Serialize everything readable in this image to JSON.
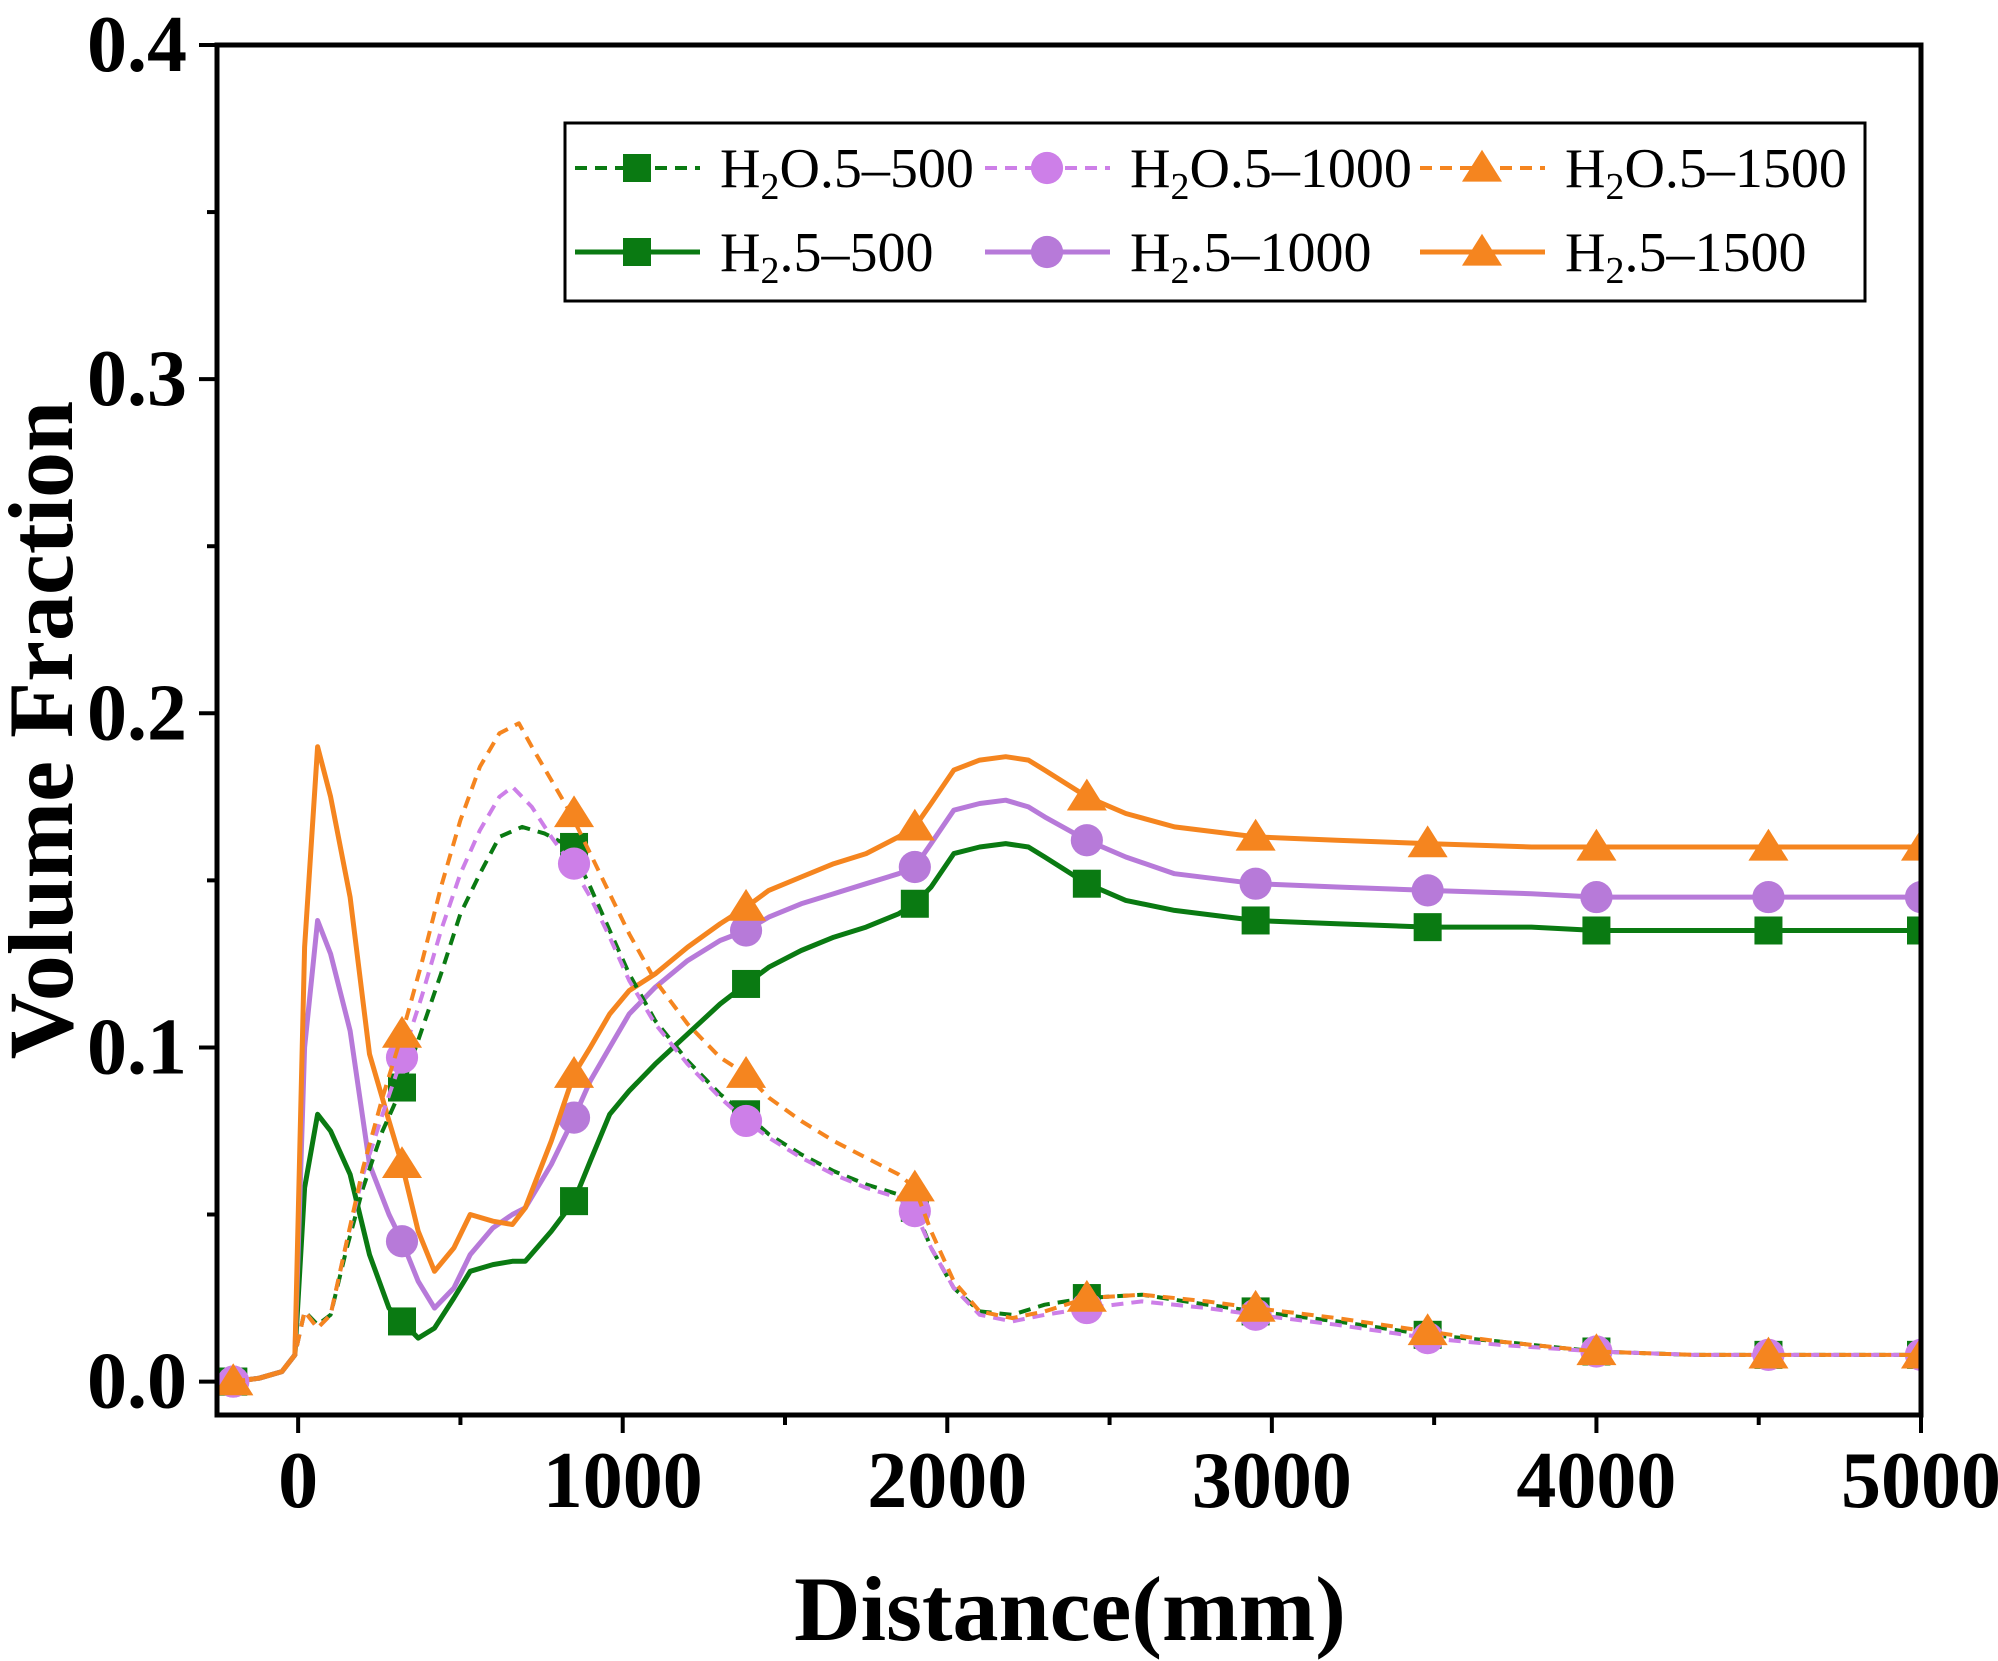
{
  "chart_data": {
    "type": "line",
    "title": "",
    "xlabel": "Distance(mm)",
    "ylabel": "Volume Fraction",
    "xlim": [
      -250,
      5000
    ],
    "ylim": [
      -0.01,
      0.4
    ],
    "xticks": [
      0,
      1000,
      2000,
      3000,
      4000,
      5000
    ],
    "xtick_labels": [
      "0",
      "1000",
      "2000",
      "3000",
      "4000",
      "5000"
    ],
    "yticks": [
      0.0,
      0.1,
      0.2,
      0.3,
      0.4
    ],
    "ytick_labels": [
      "0.0",
      "0.1",
      "0.2",
      "0.3",
      "0.4"
    ],
    "grid": false,
    "legend_position": "top-right",
    "series": [
      {
        "name": "H2O.5-500",
        "legend": {
          "base": "H",
          "sub": "2",
          "rest": "O.5–500"
        },
        "color": "#0a7a12",
        "dash": "dashed",
        "marker": "square",
        "x": [
          -200,
          -120,
          -50,
          -10,
          20,
          60,
          100,
          150,
          200,
          260,
          320,
          380,
          440,
          500,
          560,
          620,
          690,
          760,
          840,
          900,
          960,
          1020,
          1100,
          1200,
          1300,
          1380,
          1450,
          1550,
          1650,
          1750,
          1850,
          1900,
          1950,
          2020,
          2100,
          2200,
          2300,
          2430,
          2600,
          2800,
          2950,
          3200,
          3480,
          3700,
          4000,
          4300,
          4500,
          4800,
          5000
        ],
        "y": [
          0.0,
          0.001,
          0.003,
          0.008,
          0.021,
          0.017,
          0.02,
          0.04,
          0.058,
          0.075,
          0.088,
          0.105,
          0.122,
          0.14,
          0.152,
          0.163,
          0.166,
          0.164,
          0.16,
          0.148,
          0.135,
          0.122,
          0.108,
          0.096,
          0.086,
          0.08,
          0.074,
          0.068,
          0.063,
          0.059,
          0.056,
          0.052,
          0.04,
          0.028,
          0.021,
          0.02,
          0.023,
          0.025,
          0.026,
          0.023,
          0.021,
          0.018,
          0.014,
          0.012,
          0.009,
          0.008,
          0.008,
          0.008,
          0.008
        ],
        "marker_x": [
          -200,
          320,
          850,
          1380,
          1900,
          2430,
          2950,
          3480,
          4000,
          4530,
          5000
        ],
        "marker_y": [
          0.0,
          0.088,
          0.16,
          0.08,
          0.052,
          0.025,
          0.021,
          0.014,
          0.009,
          0.008,
          0.008
        ]
      },
      {
        "name": "H2O.5-1000",
        "legend": {
          "base": "H",
          "sub": "2",
          "rest": "O.5–1000"
        },
        "color": "#cd7fe8",
        "dash": "dashed",
        "marker": "circle",
        "x": [
          -200,
          -120,
          -50,
          -10,
          20,
          60,
          100,
          150,
          200,
          260,
          320,
          380,
          440,
          500,
          560,
          620,
          660,
          720,
          780,
          840,
          900,
          960,
          1020,
          1100,
          1200,
          1300,
          1380,
          1450,
          1550,
          1650,
          1750,
          1850,
          1900,
          1950,
          2020,
          2100,
          2200,
          2300,
          2430,
          2600,
          2800,
          2950,
          3200,
          3480,
          3700,
          4000,
          4300,
          4500,
          4800,
          5000
        ],
        "y": [
          0.0,
          0.001,
          0.003,
          0.008,
          0.021,
          0.016,
          0.02,
          0.042,
          0.062,
          0.08,
          0.097,
          0.115,
          0.135,
          0.152,
          0.165,
          0.175,
          0.178,
          0.172,
          0.163,
          0.155,
          0.145,
          0.133,
          0.12,
          0.107,
          0.095,
          0.085,
          0.078,
          0.073,
          0.067,
          0.062,
          0.058,
          0.055,
          0.051,
          0.04,
          0.028,
          0.02,
          0.018,
          0.02,
          0.022,
          0.024,
          0.022,
          0.02,
          0.017,
          0.013,
          0.011,
          0.009,
          0.008,
          0.008,
          0.008,
          0.008
        ],
        "marker_x": [
          -200,
          320,
          850,
          1380,
          1900,
          2430,
          2950,
          3480,
          4000,
          4530,
          5000
        ],
        "marker_y": [
          0.0,
          0.097,
          0.155,
          0.078,
          0.051,
          0.022,
          0.02,
          0.013,
          0.009,
          0.008,
          0.008
        ]
      },
      {
        "name": "H2O.5-1500",
        "legend": {
          "base": "H",
          "sub": "2",
          "rest": "O.5–1500"
        },
        "color": "#f5851f",
        "dash": "dashed",
        "marker": "triangle",
        "x": [
          -200,
          -120,
          -50,
          -10,
          20,
          60,
          100,
          150,
          200,
          260,
          320,
          380,
          440,
          500,
          560,
          620,
          680,
          720,
          780,
          840,
          900,
          960,
          1020,
          1100,
          1200,
          1300,
          1380,
          1450,
          1550,
          1650,
          1750,
          1850,
          1900,
          1950,
          2020,
          2100,
          2200,
          2300,
          2430,
          2600,
          2800,
          2950,
          3200,
          3480,
          3700,
          4000,
          4300,
          4500,
          4800,
          5000
        ],
        "y": [
          0.0,
          0.001,
          0.003,
          0.008,
          0.021,
          0.016,
          0.02,
          0.042,
          0.064,
          0.085,
          0.104,
          0.125,
          0.148,
          0.168,
          0.184,
          0.194,
          0.197,
          0.19,
          0.18,
          0.17,
          0.158,
          0.146,
          0.134,
          0.12,
          0.107,
          0.097,
          0.092,
          0.085,
          0.078,
          0.072,
          0.067,
          0.062,
          0.058,
          0.045,
          0.03,
          0.021,
          0.019,
          0.021,
          0.025,
          0.026,
          0.024,
          0.022,
          0.019,
          0.015,
          0.012,
          0.009,
          0.008,
          0.008,
          0.008,
          0.008
        ],
        "marker_x": [
          -200,
          320,
          850,
          1380,
          1900,
          2430,
          2950,
          3480,
          4000,
          4530,
          5000
        ],
        "marker_y": [
          0.0,
          0.104,
          0.17,
          0.092,
          0.058,
          0.025,
          0.022,
          0.015,
          0.009,
          0.008,
          0.008
        ]
      },
      {
        "name": "H2.5-500",
        "legend": {
          "base": "H",
          "sub": "2",
          "rest": ".5–500"
        },
        "color": "#0a7a12",
        "dash": "solid",
        "marker": "square",
        "x": [
          -200,
          -120,
          -50,
          -10,
          20,
          60,
          100,
          160,
          220,
          280,
          320,
          370,
          420,
          480,
          530,
          600,
          660,
          700,
          780,
          850,
          900,
          960,
          1020,
          1100,
          1200,
          1300,
          1380,
          1450,
          1550,
          1650,
          1750,
          1850,
          1900,
          1950,
          2020,
          2100,
          2180,
          2250,
          2300,
          2430,
          2550,
          2700,
          2950,
          3200,
          3480,
          3800,
          4000,
          4300,
          4530,
          4800,
          5000
        ],
        "y": [
          0.0,
          0.001,
          0.003,
          0.008,
          0.058,
          0.08,
          0.075,
          0.062,
          0.038,
          0.022,
          0.018,
          0.013,
          0.016,
          0.025,
          0.033,
          0.035,
          0.036,
          0.036,
          0.045,
          0.054,
          0.066,
          0.08,
          0.087,
          0.095,
          0.104,
          0.113,
          0.119,
          0.124,
          0.129,
          0.133,
          0.136,
          0.14,
          0.143,
          0.148,
          0.158,
          0.16,
          0.161,
          0.16,
          0.157,
          0.149,
          0.144,
          0.141,
          0.138,
          0.137,
          0.136,
          0.136,
          0.135,
          0.135,
          0.135,
          0.135,
          0.135
        ],
        "marker_x": [
          -200,
          320,
          850,
          1380,
          1900,
          2430,
          2950,
          3480,
          4000,
          4530,
          5000
        ],
        "marker_y": [
          0.0,
          0.018,
          0.054,
          0.119,
          0.143,
          0.149,
          0.138,
          0.136,
          0.135,
          0.135,
          0.135
        ]
      },
      {
        "name": "H2.5-1000",
        "legend": {
          "base": "H",
          "sub": "2",
          "rest": ".5–1000"
        },
        "color": "#b77ad9",
        "dash": "solid",
        "marker": "circle",
        "x": [
          -200,
          -120,
          -50,
          -10,
          20,
          60,
          100,
          160,
          220,
          280,
          320,
          370,
          420,
          480,
          530,
          600,
          660,
          700,
          780,
          850,
          900,
          960,
          1020,
          1100,
          1200,
          1300,
          1380,
          1450,
          1550,
          1650,
          1750,
          1850,
          1900,
          1950,
          2020,
          2100,
          2180,
          2250,
          2300,
          2430,
          2550,
          2700,
          2950,
          3200,
          3480,
          3800,
          4000,
          4300,
          4530,
          4800,
          5000
        ],
        "y": [
          0.0,
          0.001,
          0.003,
          0.008,
          0.1,
          0.138,
          0.128,
          0.105,
          0.065,
          0.05,
          0.042,
          0.03,
          0.022,
          0.028,
          0.038,
          0.046,
          0.05,
          0.052,
          0.065,
          0.079,
          0.09,
          0.1,
          0.11,
          0.118,
          0.126,
          0.132,
          0.135,
          0.139,
          0.143,
          0.146,
          0.149,
          0.152,
          0.154,
          0.161,
          0.171,
          0.173,
          0.174,
          0.172,
          0.169,
          0.162,
          0.157,
          0.152,
          0.149,
          0.148,
          0.147,
          0.146,
          0.145,
          0.145,
          0.145,
          0.145,
          0.145
        ],
        "marker_x": [
          -200,
          320,
          850,
          1380,
          1900,
          2430,
          2950,
          3480,
          4000,
          4530,
          5000
        ],
        "marker_y": [
          0.0,
          0.042,
          0.079,
          0.135,
          0.154,
          0.162,
          0.149,
          0.147,
          0.145,
          0.145,
          0.145
        ]
      },
      {
        "name": "H2.5-1500",
        "legend": {
          "base": "H",
          "sub": "2",
          "rest": ".5–1500"
        },
        "color": "#f5851f",
        "dash": "solid",
        "marker": "triangle",
        "x": [
          -200,
          -120,
          -50,
          -10,
          20,
          60,
          100,
          160,
          220,
          280,
          320,
          370,
          420,
          480,
          530,
          600,
          660,
          700,
          780,
          850,
          900,
          960,
          1020,
          1100,
          1200,
          1300,
          1380,
          1450,
          1550,
          1650,
          1750,
          1850,
          1900,
          1950,
          2020,
          2100,
          2180,
          2250,
          2300,
          2430,
          2550,
          2700,
          2950,
          3200,
          3480,
          3800,
          4000,
          4300,
          4530,
          4800,
          5000
        ],
        "y": [
          0.0,
          0.001,
          0.003,
          0.008,
          0.13,
          0.19,
          0.175,
          0.145,
          0.098,
          0.078,
          0.065,
          0.045,
          0.033,
          0.04,
          0.05,
          0.048,
          0.047,
          0.052,
          0.072,
          0.092,
          0.1,
          0.11,
          0.117,
          0.122,
          0.13,
          0.137,
          0.142,
          0.147,
          0.151,
          0.155,
          0.158,
          0.163,
          0.166,
          0.173,
          0.183,
          0.186,
          0.187,
          0.186,
          0.183,
          0.175,
          0.17,
          0.166,
          0.163,
          0.162,
          0.161,
          0.16,
          0.16,
          0.16,
          0.16,
          0.16,
          0.16
        ],
        "marker_x": [
          -200,
          320,
          850,
          1380,
          1900,
          2430,
          2950,
          3480,
          4000,
          4530,
          5000
        ],
        "marker_y": [
          0.0,
          0.065,
          0.092,
          0.142,
          0.166,
          0.175,
          0.163,
          0.161,
          0.16,
          0.16,
          0.16
        ]
      }
    ]
  }
}
